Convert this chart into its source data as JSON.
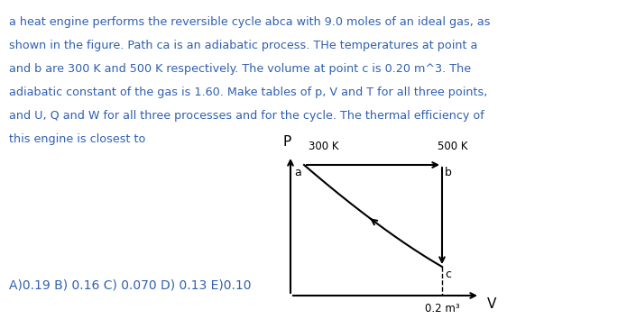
{
  "text_lines": [
    "a heat engine performs the reversible cycle abca with 9.0 moles of an ideal gas, as",
    "shown in the figure. Path ca is an adiabatic process. THe temperatures at point a",
    "and b are 300 K and 500 K respectively. The volume at point c is 0.20 m^3. The",
    "adiabatic constant of the gas is 1.60. Make tables of p, V and T for all three points,",
    "and U, Q and W for all three processes and for the cycle. The thermal efficiency of",
    "this engine is closest to"
  ],
  "answer_line": "A)0.19 B) 0.16 C) 0.070 D) 0.13 E)0.10",
  "text_color": "#3060b0",
  "answer_color": "#3060b0",
  "diagram_color": "#000000",
  "label_300K": "300 K",
  "label_500K": "500 K",
  "label_a": "a",
  "label_b": "b",
  "label_c": "c",
  "label_P": "P",
  "label_V": "V",
  "label_vc": "0.2 m³"
}
